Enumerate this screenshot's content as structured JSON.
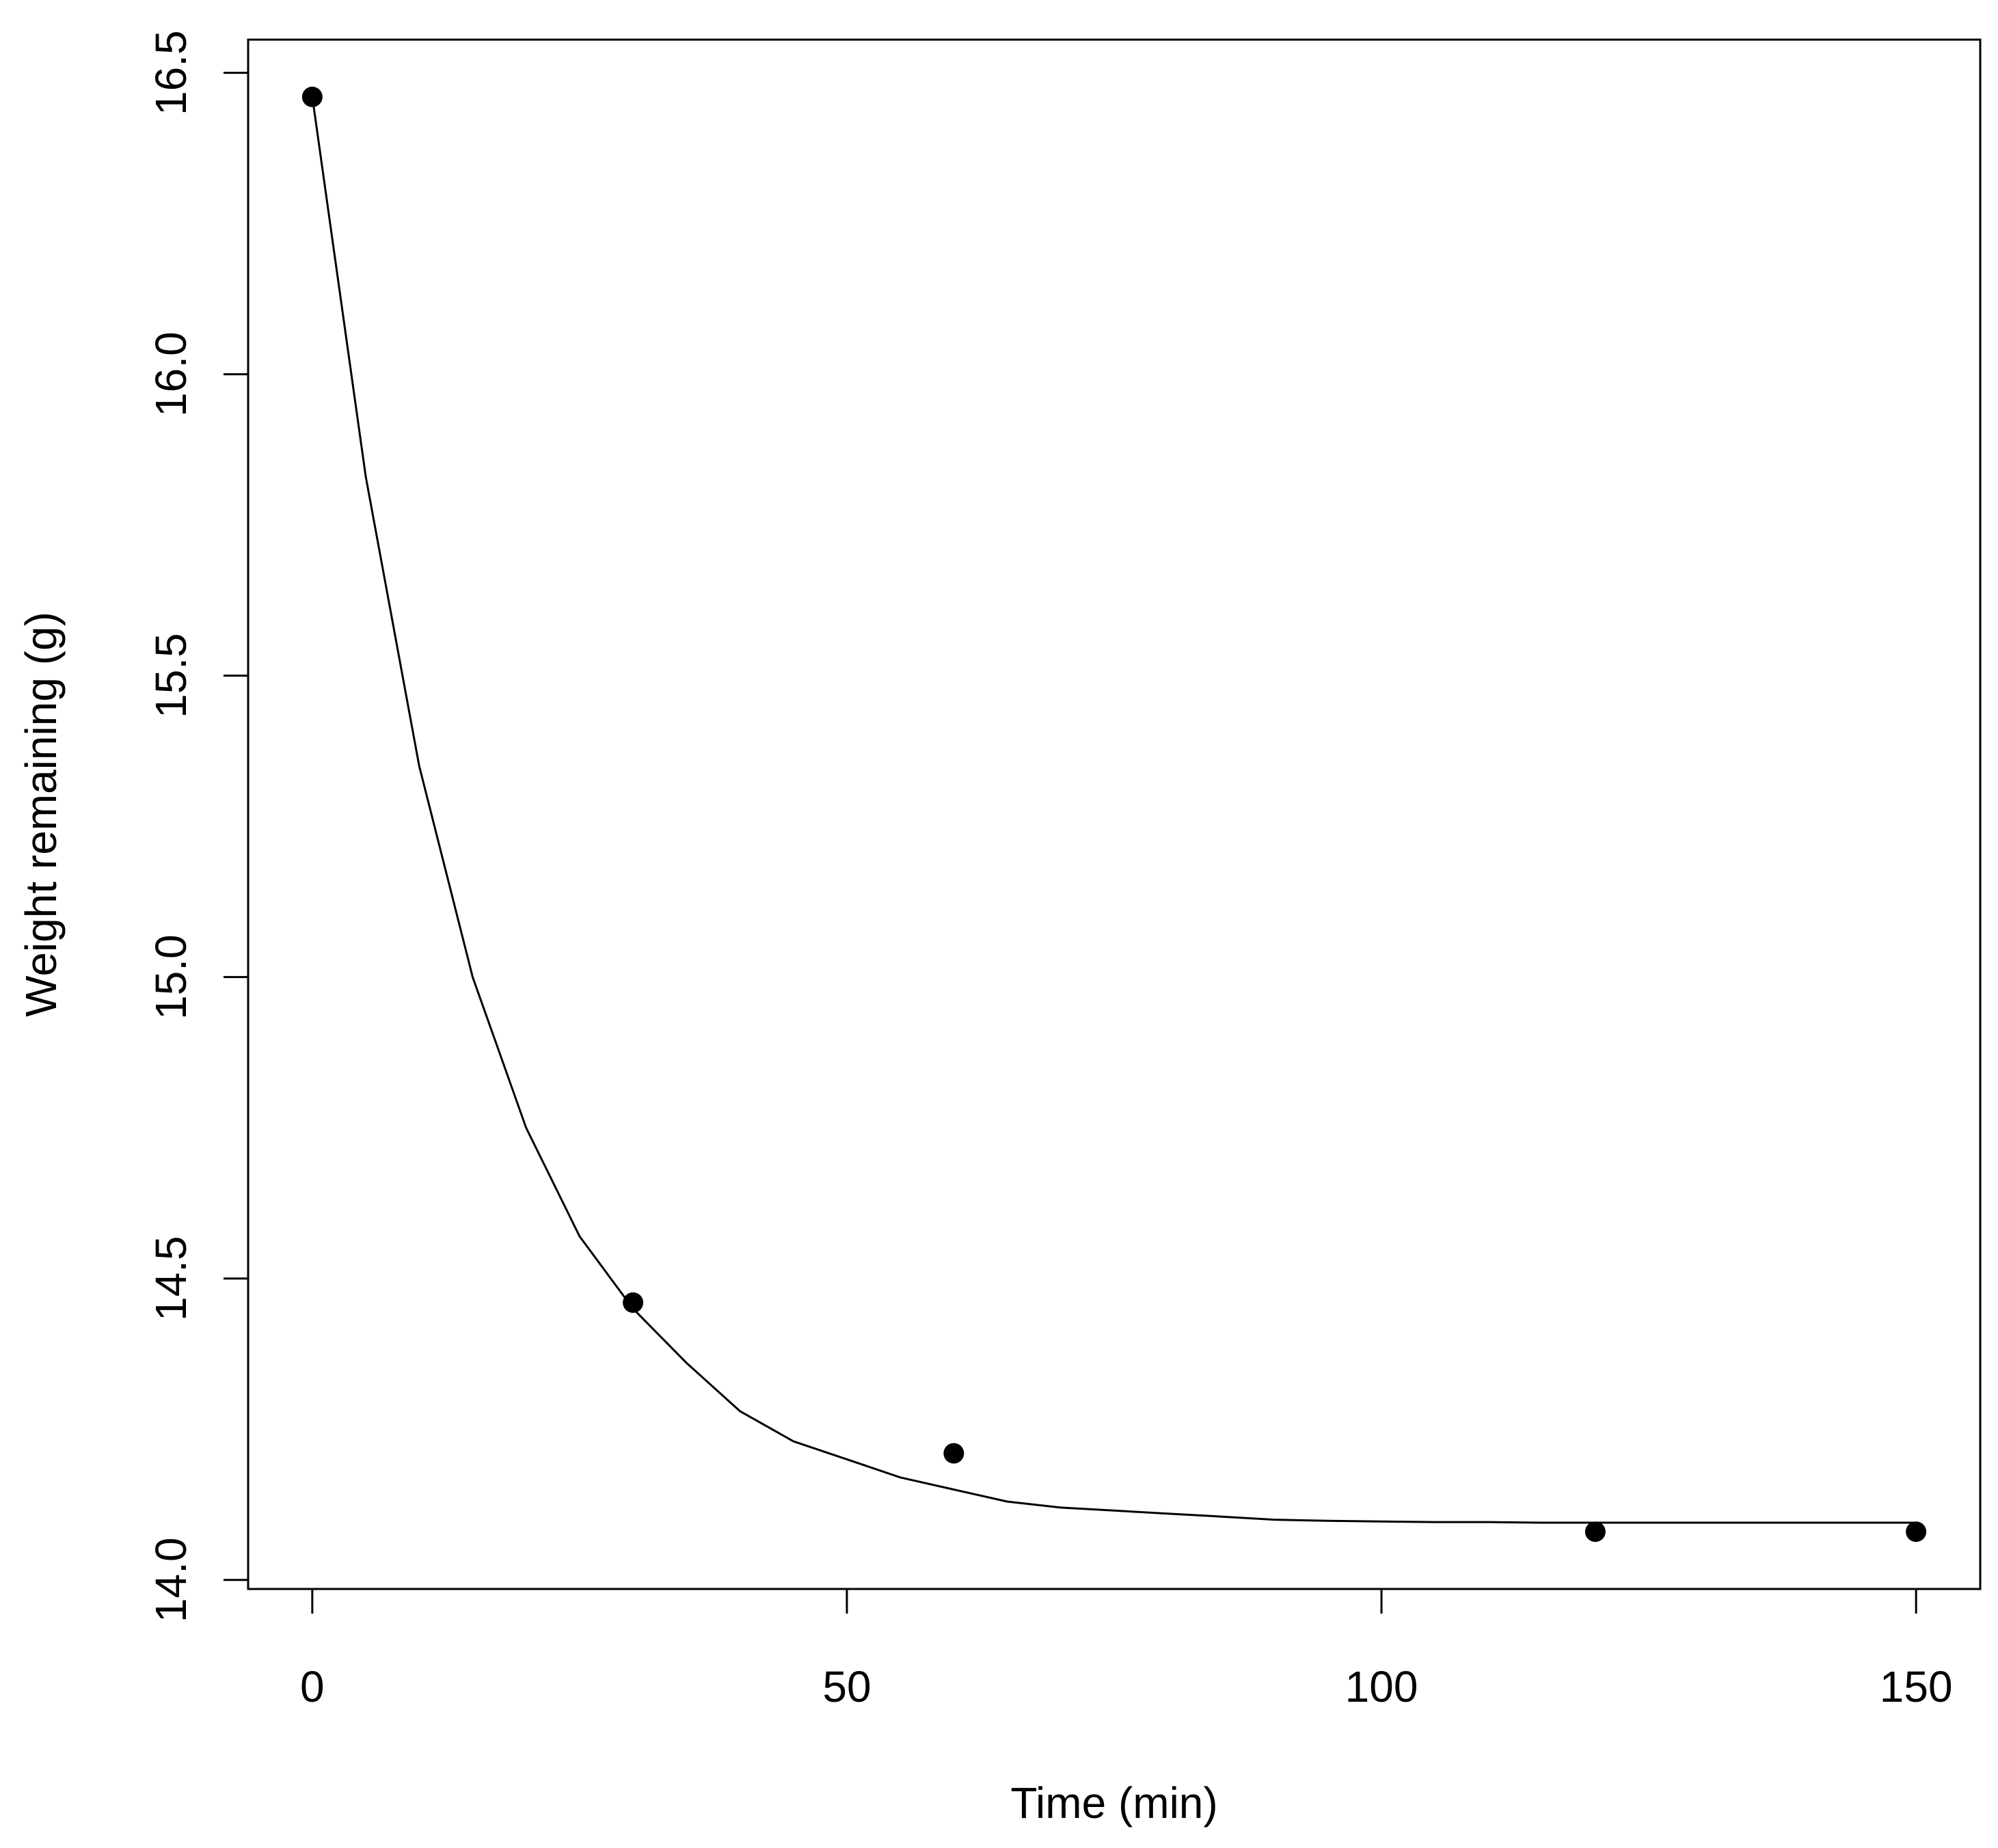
{
  "chart_data": {
    "type": "scatter",
    "title": "",
    "xlabel": "Time (min)",
    "ylabel": "Weight remaining (g)",
    "xlim": [
      -6,
      156
    ],
    "ylim": [
      13.985,
      16.555
    ],
    "x_ticks": [
      0,
      50,
      100,
      150
    ],
    "x_tick_labels": [
      "0",
      "50",
      "100",
      "150"
    ],
    "y_ticks": [
      14.0,
      14.5,
      15.0,
      15.5,
      16.0,
      16.5
    ],
    "y_tick_labels": [
      "14.0",
      "14.5",
      "15.0",
      "15.5",
      "16.0",
      "16.5"
    ],
    "grid": false,
    "legend": "none",
    "series": [
      {
        "kind": "points",
        "x": [
          0,
          30,
          60,
          120,
          150
        ],
        "y": [
          16.46,
          14.46,
          14.21,
          14.08,
          14.08
        ],
        "color": "#000000"
      },
      {
        "kind": "fitted-curve",
        "model": "exponential decay",
        "x": [
          0,
          5,
          10,
          15,
          20,
          25,
          30,
          35,
          40,
          45,
          50,
          55,
          60,
          65,
          70,
          75,
          80,
          85,
          90,
          95,
          100,
          105,
          110,
          115,
          120,
          125,
          130,
          135,
          140,
          145,
          150
        ],
        "y": [
          16.46,
          15.83,
          15.35,
          15.0,
          14.75,
          14.57,
          14.45,
          14.36,
          14.28,
          14.23,
          14.2,
          14.17,
          14.15,
          14.13,
          14.12,
          14.115,
          14.11,
          14.105,
          14.1,
          14.098,
          14.097,
          14.096,
          14.096,
          14.095,
          14.095,
          14.095,
          14.095,
          14.095,
          14.095,
          14.095,
          14.095
        ],
        "color": "#000000"
      }
    ]
  }
}
